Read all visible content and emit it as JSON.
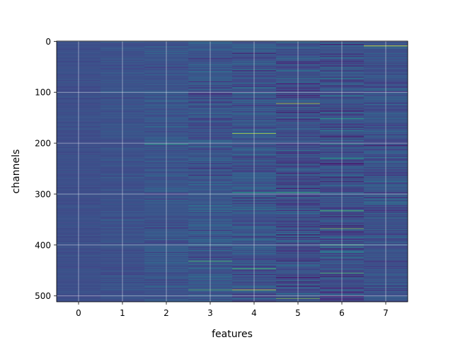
{
  "chart_data": {
    "type": "heatmap",
    "title": "",
    "xlabel": "features",
    "ylabel": "channels",
    "x_categories": [
      "0",
      "1",
      "2",
      "3",
      "4",
      "5",
      "6",
      "7"
    ],
    "y_ticks": [
      0,
      100,
      200,
      300,
      400,
      500
    ],
    "y_range": [
      0,
      511
    ],
    "y_inverted": true,
    "n_rows": 512,
    "grid": true,
    "colormap": "viridis",
    "column_variability": [
      0.08,
      0.12,
      0.2,
      0.26,
      0.3,
      0.34,
      0.34,
      0.27
    ],
    "column_base": [
      0.3,
      0.31,
      0.33,
      0.33,
      0.33,
      0.3,
      0.3,
      0.32
    ],
    "highlights": [
      {
        "feature": 7,
        "channel": 9,
        "value": 1.0
      },
      {
        "feature": 5,
        "channel": 122,
        "value": 0.95
      },
      {
        "feature": 4,
        "channel": 181,
        "value": 0.95
      },
      {
        "feature": 4,
        "channel": 488,
        "value": 0.98
      },
      {
        "feature": 6,
        "channel": 368,
        "value": 0.9
      },
      {
        "feature": 5,
        "channel": 505,
        "value": 0.9
      },
      {
        "feature": 6,
        "channel": 400,
        "value": 0.85
      },
      {
        "feature": 6,
        "channel": 455,
        "value": 0.85
      },
      {
        "feature": 3,
        "channel": 488,
        "value": 0.85
      },
      {
        "feature": 3,
        "channel": 432,
        "value": 0.85
      },
      {
        "feature": 4,
        "channel": 447,
        "value": 0.85
      },
      {
        "feature": 5,
        "channel": 297,
        "value": 0.8
      },
      {
        "feature": 2,
        "channel": 202,
        "value": 0.75
      },
      {
        "feature": 6,
        "channel": 333,
        "value": 0.85
      },
      {
        "feature": 6,
        "channel": 152,
        "value": 0.75
      },
      {
        "feature": 6,
        "channel": 230,
        "value": 0.75
      },
      {
        "feature": 4,
        "channel": 297,
        "value": 0.75
      }
    ],
    "dark_bands": [
      {
        "feature": 5,
        "channel": 140,
        "value": 0.02
      },
      {
        "feature": 5,
        "channel": 380,
        "value": 0.02
      },
      {
        "feature": 6,
        "channel": 268,
        "value": 0.02
      },
      {
        "feature": 5,
        "channel": 431,
        "value": 0.04
      },
      {
        "feature": 7,
        "channel": 205,
        "value": 0.05
      }
    ]
  }
}
